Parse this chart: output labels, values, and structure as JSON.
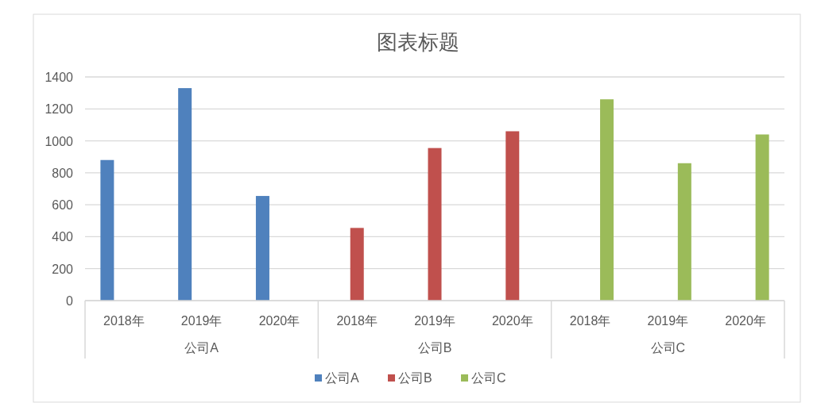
{
  "chart_data": {
    "type": "bar",
    "title": "图表标题",
    "categories": [
      "2018年",
      "2019年",
      "2020年",
      "2018年",
      "2019年",
      "2020年",
      "2018年",
      "2019年",
      "2020年"
    ],
    "annotations": [
      "公司A",
      "公司B",
      "公司C"
    ],
    "series": [
      {
        "name": "公司A",
        "color": "#4f81bd",
        "values": [
          880,
          1330,
          655,
          null,
          null,
          null,
          null,
          null,
          null
        ]
      },
      {
        "name": "公司B",
        "color": "#c0504d",
        "values": [
          null,
          null,
          null,
          455,
          955,
          1060,
          null,
          null,
          null
        ]
      },
      {
        "name": "公司C",
        "color": "#9bbb59",
        "values": [
          null,
          null,
          null,
          null,
          null,
          null,
          1260,
          860,
          1040
        ]
      }
    ],
    "ylim": [
      0,
      1400
    ],
    "yticks": [
      0,
      200,
      400,
      600,
      800,
      1000,
      1200,
      1400
    ],
    "grid": "y",
    "legend": "bottom"
  }
}
